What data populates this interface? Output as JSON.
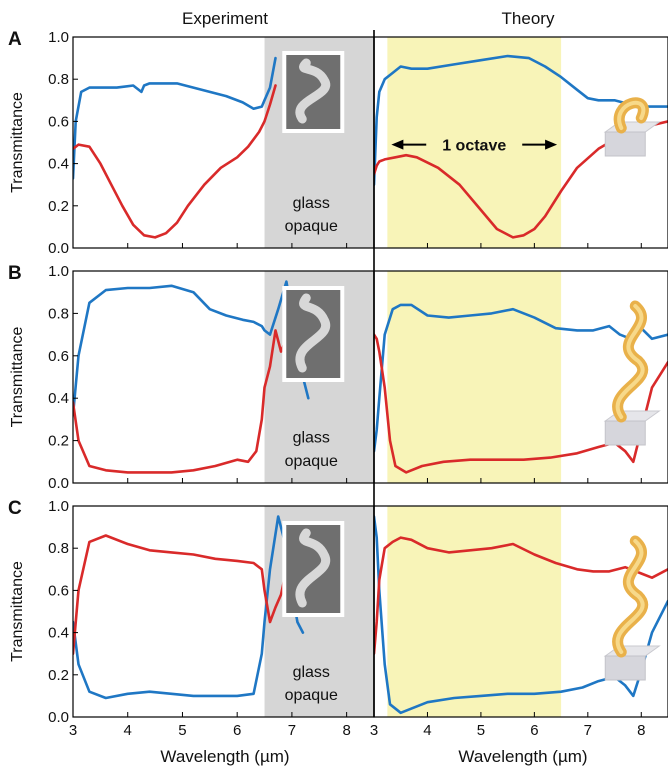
{
  "figure": {
    "header_left": "Experiment",
    "header_right": "Theory",
    "ylabel": "Transmittance",
    "xlabel": "Wavelength (µm)",
    "opaque_line1": "glass",
    "opaque_line2": "opaque",
    "octave_label": "1 octave",
    "colors": {
      "blue": "#1f77c4",
      "red": "#d92a2a",
      "opaque_band": "#d6d6d6",
      "octave_band": "#f8f4b8"
    }
  },
  "chart_data": [
    {
      "type": "line",
      "panel": "A",
      "side": "Experiment",
      "xlabel": "Wavelength (µm)",
      "ylabel": "Transmittance",
      "xlim": [
        3,
        8.5
      ],
      "ylim": [
        0,
        1.0
      ],
      "xticks": [
        3,
        4,
        5,
        6,
        7,
        8
      ],
      "yticks": [
        0,
        0.2,
        0.4,
        0.6,
        0.8,
        1.0
      ],
      "shaded_regions": [
        {
          "x": [
            6.5,
            8.5
          ],
          "label": "glass opaque"
        }
      ],
      "series": [
        {
          "color": "blue",
          "x": [
            3.0,
            3.05,
            3.15,
            3.3,
            3.5,
            3.8,
            4.1,
            4.25,
            4.3,
            4.4,
            4.6,
            4.9,
            5.2,
            5.5,
            5.8,
            6.1,
            6.3,
            6.45,
            6.5,
            6.6,
            6.7
          ],
          "y": [
            0.33,
            0.6,
            0.74,
            0.76,
            0.76,
            0.76,
            0.77,
            0.74,
            0.77,
            0.78,
            0.78,
            0.78,
            0.76,
            0.74,
            0.72,
            0.69,
            0.66,
            0.67,
            0.7,
            0.76,
            0.9
          ]
        },
        {
          "color": "red",
          "x": [
            3.0,
            3.1,
            3.3,
            3.5,
            3.7,
            3.9,
            4.1,
            4.3,
            4.5,
            4.7,
            4.9,
            5.1,
            5.4,
            5.7,
            6.0,
            6.2,
            6.4,
            6.5,
            6.6,
            6.7
          ],
          "y": [
            0.47,
            0.49,
            0.48,
            0.4,
            0.3,
            0.2,
            0.11,
            0.06,
            0.05,
            0.07,
            0.12,
            0.2,
            0.3,
            0.38,
            0.43,
            0.48,
            0.55,
            0.6,
            0.68,
            0.77
          ]
        }
      ]
    },
    {
      "type": "line",
      "panel": "A",
      "side": "Theory",
      "xlabel": "Wavelength (µm)",
      "xlim": [
        3,
        8.5
      ],
      "ylim": [
        0,
        1.0
      ],
      "xticks": [
        3,
        4,
        5,
        6,
        7,
        8
      ],
      "yticks": [
        0,
        0.2,
        0.4,
        0.6,
        0.8,
        1.0
      ],
      "shaded_regions": [
        {
          "x": [
            3.25,
            6.5
          ],
          "label": "1 octave"
        }
      ],
      "series": [
        {
          "color": "blue",
          "x": [
            3.0,
            3.05,
            3.1,
            3.2,
            3.35,
            3.5,
            3.7,
            4.0,
            4.5,
            5.0,
            5.5,
            5.9,
            6.2,
            6.5,
            6.8,
            7.0,
            7.2,
            7.5,
            7.8,
            8.1,
            8.5
          ],
          "y": [
            0.3,
            0.62,
            0.74,
            0.8,
            0.83,
            0.86,
            0.85,
            0.85,
            0.87,
            0.89,
            0.91,
            0.9,
            0.86,
            0.81,
            0.75,
            0.71,
            0.7,
            0.7,
            0.68,
            0.67,
            0.67
          ]
        },
        {
          "color": "red",
          "x": [
            3.0,
            3.05,
            3.1,
            3.2,
            3.4,
            3.6,
            3.8,
            4.2,
            4.6,
            5.0,
            5.3,
            5.6,
            5.8,
            6.0,
            6.2,
            6.5,
            6.8,
            7.2,
            7.6,
            8.0,
            8.5
          ],
          "y": [
            0.35,
            0.39,
            0.41,
            0.42,
            0.43,
            0.44,
            0.43,
            0.38,
            0.3,
            0.18,
            0.09,
            0.05,
            0.06,
            0.09,
            0.15,
            0.27,
            0.38,
            0.47,
            0.53,
            0.57,
            0.6
          ]
        }
      ]
    },
    {
      "type": "line",
      "panel": "B",
      "side": "Experiment",
      "xlabel": "Wavelength (µm)",
      "ylabel": "Transmittance",
      "xlim": [
        3,
        8.5
      ],
      "ylim": [
        0,
        1.0
      ],
      "xticks": [
        3,
        4,
        5,
        6,
        7,
        8
      ],
      "yticks": [
        0,
        0.2,
        0.4,
        0.6,
        0.8,
        1.0
      ],
      "shaded_regions": [
        {
          "x": [
            6.5,
            8.5
          ],
          "label": "glass opaque"
        }
      ],
      "series": [
        {
          "color": "blue",
          "x": [
            3.0,
            3.1,
            3.3,
            3.6,
            4.0,
            4.4,
            4.8,
            5.2,
            5.5,
            5.8,
            6.1,
            6.3,
            6.45,
            6.5,
            6.6,
            6.75,
            6.9,
            7.0,
            7.1,
            7.2,
            7.3
          ],
          "y": [
            0.32,
            0.6,
            0.85,
            0.91,
            0.92,
            0.92,
            0.93,
            0.9,
            0.82,
            0.79,
            0.77,
            0.76,
            0.74,
            0.72,
            0.7,
            0.82,
            0.95,
            0.8,
            0.65,
            0.5,
            0.4
          ]
        },
        {
          "color": "red",
          "x": [
            3.0,
            3.1,
            3.3,
            3.6,
            4.0,
            4.4,
            4.8,
            5.2,
            5.6,
            6.0,
            6.2,
            6.35,
            6.45,
            6.5,
            6.6,
            6.7,
            6.8,
            6.9,
            7.0
          ],
          "y": [
            0.38,
            0.2,
            0.08,
            0.06,
            0.05,
            0.05,
            0.05,
            0.06,
            0.08,
            0.11,
            0.1,
            0.15,
            0.3,
            0.45,
            0.55,
            0.72,
            0.62,
            0.68,
            0.7
          ]
        }
      ]
    },
    {
      "type": "line",
      "panel": "B",
      "side": "Theory",
      "xlabel": "Wavelength (µm)",
      "xlim": [
        3,
        8.5
      ],
      "ylim": [
        0,
        1.0
      ],
      "xticks": [
        3,
        4,
        5,
        6,
        7,
        8
      ],
      "yticks": [
        0,
        0.2,
        0.4,
        0.6,
        0.8,
        1.0
      ],
      "shaded_regions": [
        {
          "x": [
            3.25,
            6.5
          ],
          "label": "1 octave"
        }
      ],
      "series": [
        {
          "color": "blue",
          "x": [
            3.0,
            3.05,
            3.1,
            3.2,
            3.35,
            3.5,
            3.7,
            4.0,
            4.4,
            4.8,
            5.2,
            5.6,
            6.0,
            6.4,
            6.8,
            7.1,
            7.4,
            7.6,
            7.8,
            8.0,
            8.2,
            8.5
          ],
          "y": [
            0.15,
            0.25,
            0.4,
            0.7,
            0.82,
            0.84,
            0.84,
            0.79,
            0.78,
            0.79,
            0.8,
            0.82,
            0.78,
            0.73,
            0.72,
            0.72,
            0.74,
            0.7,
            0.68,
            0.73,
            0.68,
            0.7
          ]
        },
        {
          "color": "red",
          "x": [
            3.0,
            3.05,
            3.1,
            3.2,
            3.3,
            3.4,
            3.6,
            3.9,
            4.3,
            4.8,
            5.3,
            5.8,
            6.3,
            6.8,
            7.2,
            7.5,
            7.7,
            7.85,
            8.0,
            8.2,
            8.5
          ],
          "y": [
            0.7,
            0.68,
            0.62,
            0.45,
            0.2,
            0.08,
            0.05,
            0.08,
            0.1,
            0.11,
            0.11,
            0.11,
            0.12,
            0.14,
            0.17,
            0.19,
            0.15,
            0.1,
            0.25,
            0.45,
            0.57
          ]
        }
      ]
    },
    {
      "type": "line",
      "panel": "C",
      "side": "Experiment",
      "xlabel": "Wavelength (µm)",
      "ylabel": "Transmittance",
      "xlim": [
        3,
        8.5
      ],
      "ylim": [
        0,
        1.0
      ],
      "xticks": [
        3,
        4,
        5,
        6,
        7,
        8
      ],
      "yticks": [
        0,
        0.2,
        0.4,
        0.6,
        0.8,
        1.0
      ],
      "shaded_regions": [
        {
          "x": [
            6.5,
            8.5
          ],
          "label": "glass opaque"
        }
      ],
      "series": [
        {
          "color": "blue",
          "x": [
            3.0,
            3.1,
            3.3,
            3.6,
            4.0,
            4.4,
            4.8,
            5.2,
            5.6,
            6.0,
            6.3,
            6.45,
            6.5,
            6.6,
            6.75,
            6.9,
            7.0,
            7.1,
            7.2
          ],
          "y": [
            0.45,
            0.25,
            0.12,
            0.09,
            0.11,
            0.12,
            0.11,
            0.1,
            0.1,
            0.1,
            0.11,
            0.3,
            0.45,
            0.7,
            0.95,
            0.8,
            0.6,
            0.45,
            0.4
          ]
        },
        {
          "color": "red",
          "x": [
            3.0,
            3.1,
            3.3,
            3.6,
            4.0,
            4.4,
            4.8,
            5.2,
            5.6,
            6.0,
            6.3,
            6.45,
            6.5,
            6.6,
            6.7,
            6.8,
            6.9,
            7.0
          ],
          "y": [
            0.3,
            0.6,
            0.83,
            0.86,
            0.82,
            0.79,
            0.78,
            0.77,
            0.75,
            0.74,
            0.73,
            0.7,
            0.6,
            0.45,
            0.52,
            0.58,
            0.7,
            0.72
          ]
        }
      ]
    },
    {
      "type": "line",
      "panel": "C",
      "side": "Theory",
      "xlabel": "Wavelength (µm)",
      "xlim": [
        3,
        8.5
      ],
      "ylim": [
        0,
        1.0
      ],
      "xticks": [
        3,
        4,
        5,
        6,
        7,
        8
      ],
      "yticks": [
        0,
        0.2,
        0.4,
        0.6,
        0.8,
        1.0
      ],
      "shaded_regions": [
        {
          "x": [
            3.25,
            6.5
          ],
          "label": "1 octave"
        }
      ],
      "series": [
        {
          "color": "blue",
          "x": [
            3.0,
            3.05,
            3.1,
            3.2,
            3.3,
            3.5,
            3.7,
            4.0,
            4.5,
            5.0,
            5.5,
            6.0,
            6.5,
            6.9,
            7.2,
            7.5,
            7.7,
            7.85,
            8.0,
            8.2,
            8.5
          ],
          "y": [
            0.95,
            0.85,
            0.6,
            0.25,
            0.06,
            0.02,
            0.04,
            0.07,
            0.09,
            0.1,
            0.11,
            0.11,
            0.12,
            0.14,
            0.17,
            0.19,
            0.15,
            0.1,
            0.22,
            0.4,
            0.55
          ]
        },
        {
          "color": "red",
          "x": [
            3.0,
            3.05,
            3.1,
            3.2,
            3.35,
            3.5,
            3.7,
            4.0,
            4.4,
            4.8,
            5.2,
            5.6,
            6.0,
            6.4,
            6.8,
            7.1,
            7.4,
            7.7,
            8.0,
            8.2,
            8.5
          ],
          "y": [
            0.3,
            0.45,
            0.65,
            0.8,
            0.83,
            0.85,
            0.84,
            0.8,
            0.78,
            0.79,
            0.8,
            0.82,
            0.77,
            0.73,
            0.7,
            0.69,
            0.69,
            0.71,
            0.68,
            0.66,
            0.7
          ]
        }
      ]
    }
  ]
}
